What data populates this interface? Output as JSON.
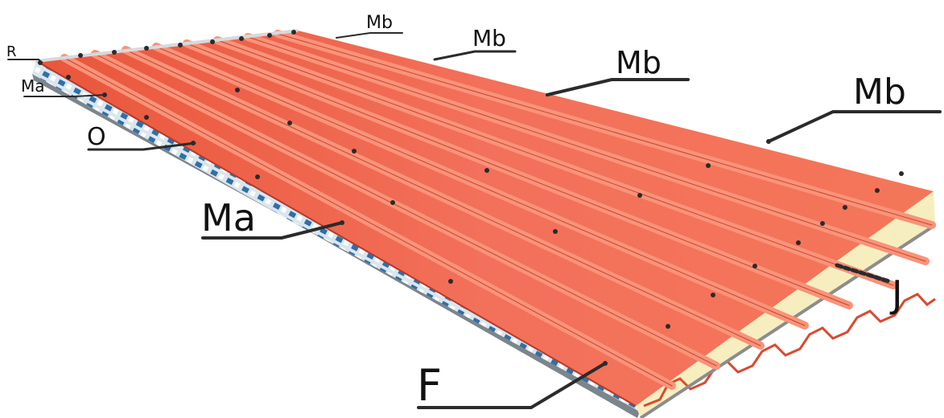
{
  "labels": {
    "r": "R",
    "ma_small": "Ma",
    "o": "O",
    "mb_1": "Mb",
    "mb_2": "Mb",
    "mb_3": "Mb",
    "mb_4": "Mb",
    "ma_large": "Ma",
    "j": "J",
    "f": "F"
  },
  "colors": {
    "roof_base": "#f0654a",
    "rib_top": "#f6886d",
    "rib_shadow": "#d94a30",
    "insulation": "#f7efc0",
    "substrate_gray": "#8c8c8c",
    "edge_blue": "#3b7fb8",
    "leader": "#2b2b2b"
  },
  "icons": {
    "fixing_clip": "fixing-clip-icon"
  }
}
